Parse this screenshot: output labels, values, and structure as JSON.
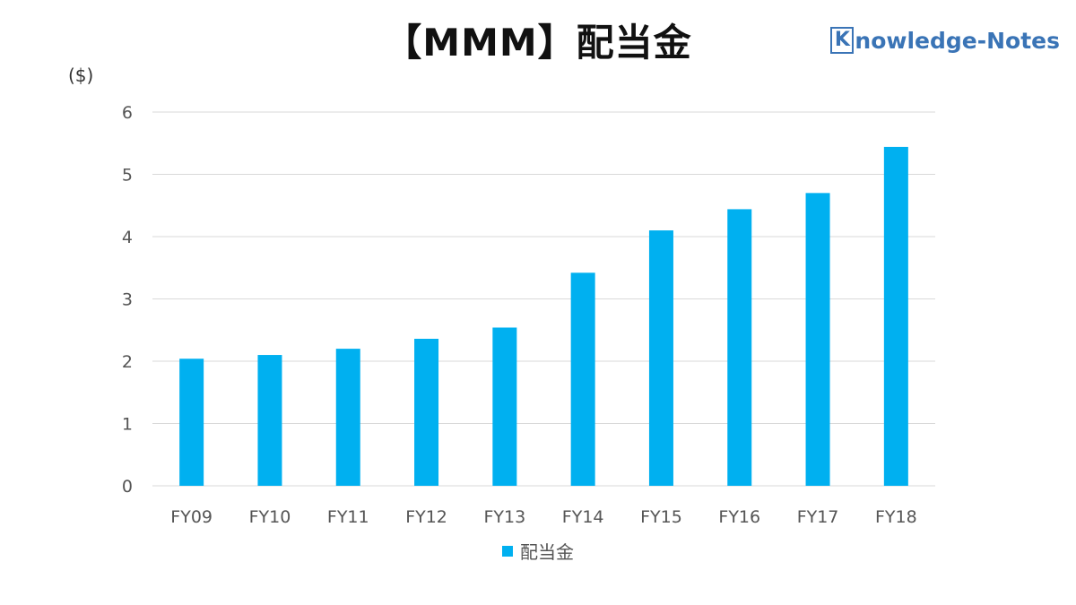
{
  "logo": {
    "k": "K",
    "rest": "nowledge-Notes",
    "color": "#3a74b6"
  },
  "unit_label": "($)",
  "colors": {
    "bar": "#00b0f0",
    "grid": "#d9d9d9"
  },
  "chart_data": {
    "type": "bar",
    "title": "【MMM】配当金",
    "ylabel": "($)",
    "categories": [
      "FY09",
      "FY10",
      "FY11",
      "FY12",
      "FY13",
      "FY14",
      "FY15",
      "FY16",
      "FY17",
      "FY18"
    ],
    "series": [
      {
        "name": "配当金",
        "values": [
          2.04,
          2.1,
          2.2,
          2.36,
          2.54,
          3.42,
          4.1,
          4.44,
          4.7,
          5.44
        ]
      }
    ],
    "ylim": [
      0,
      6
    ],
    "yticks": [
      0,
      1,
      2,
      3,
      4,
      5,
      6
    ],
    "grid": true,
    "legend": "bottom"
  }
}
